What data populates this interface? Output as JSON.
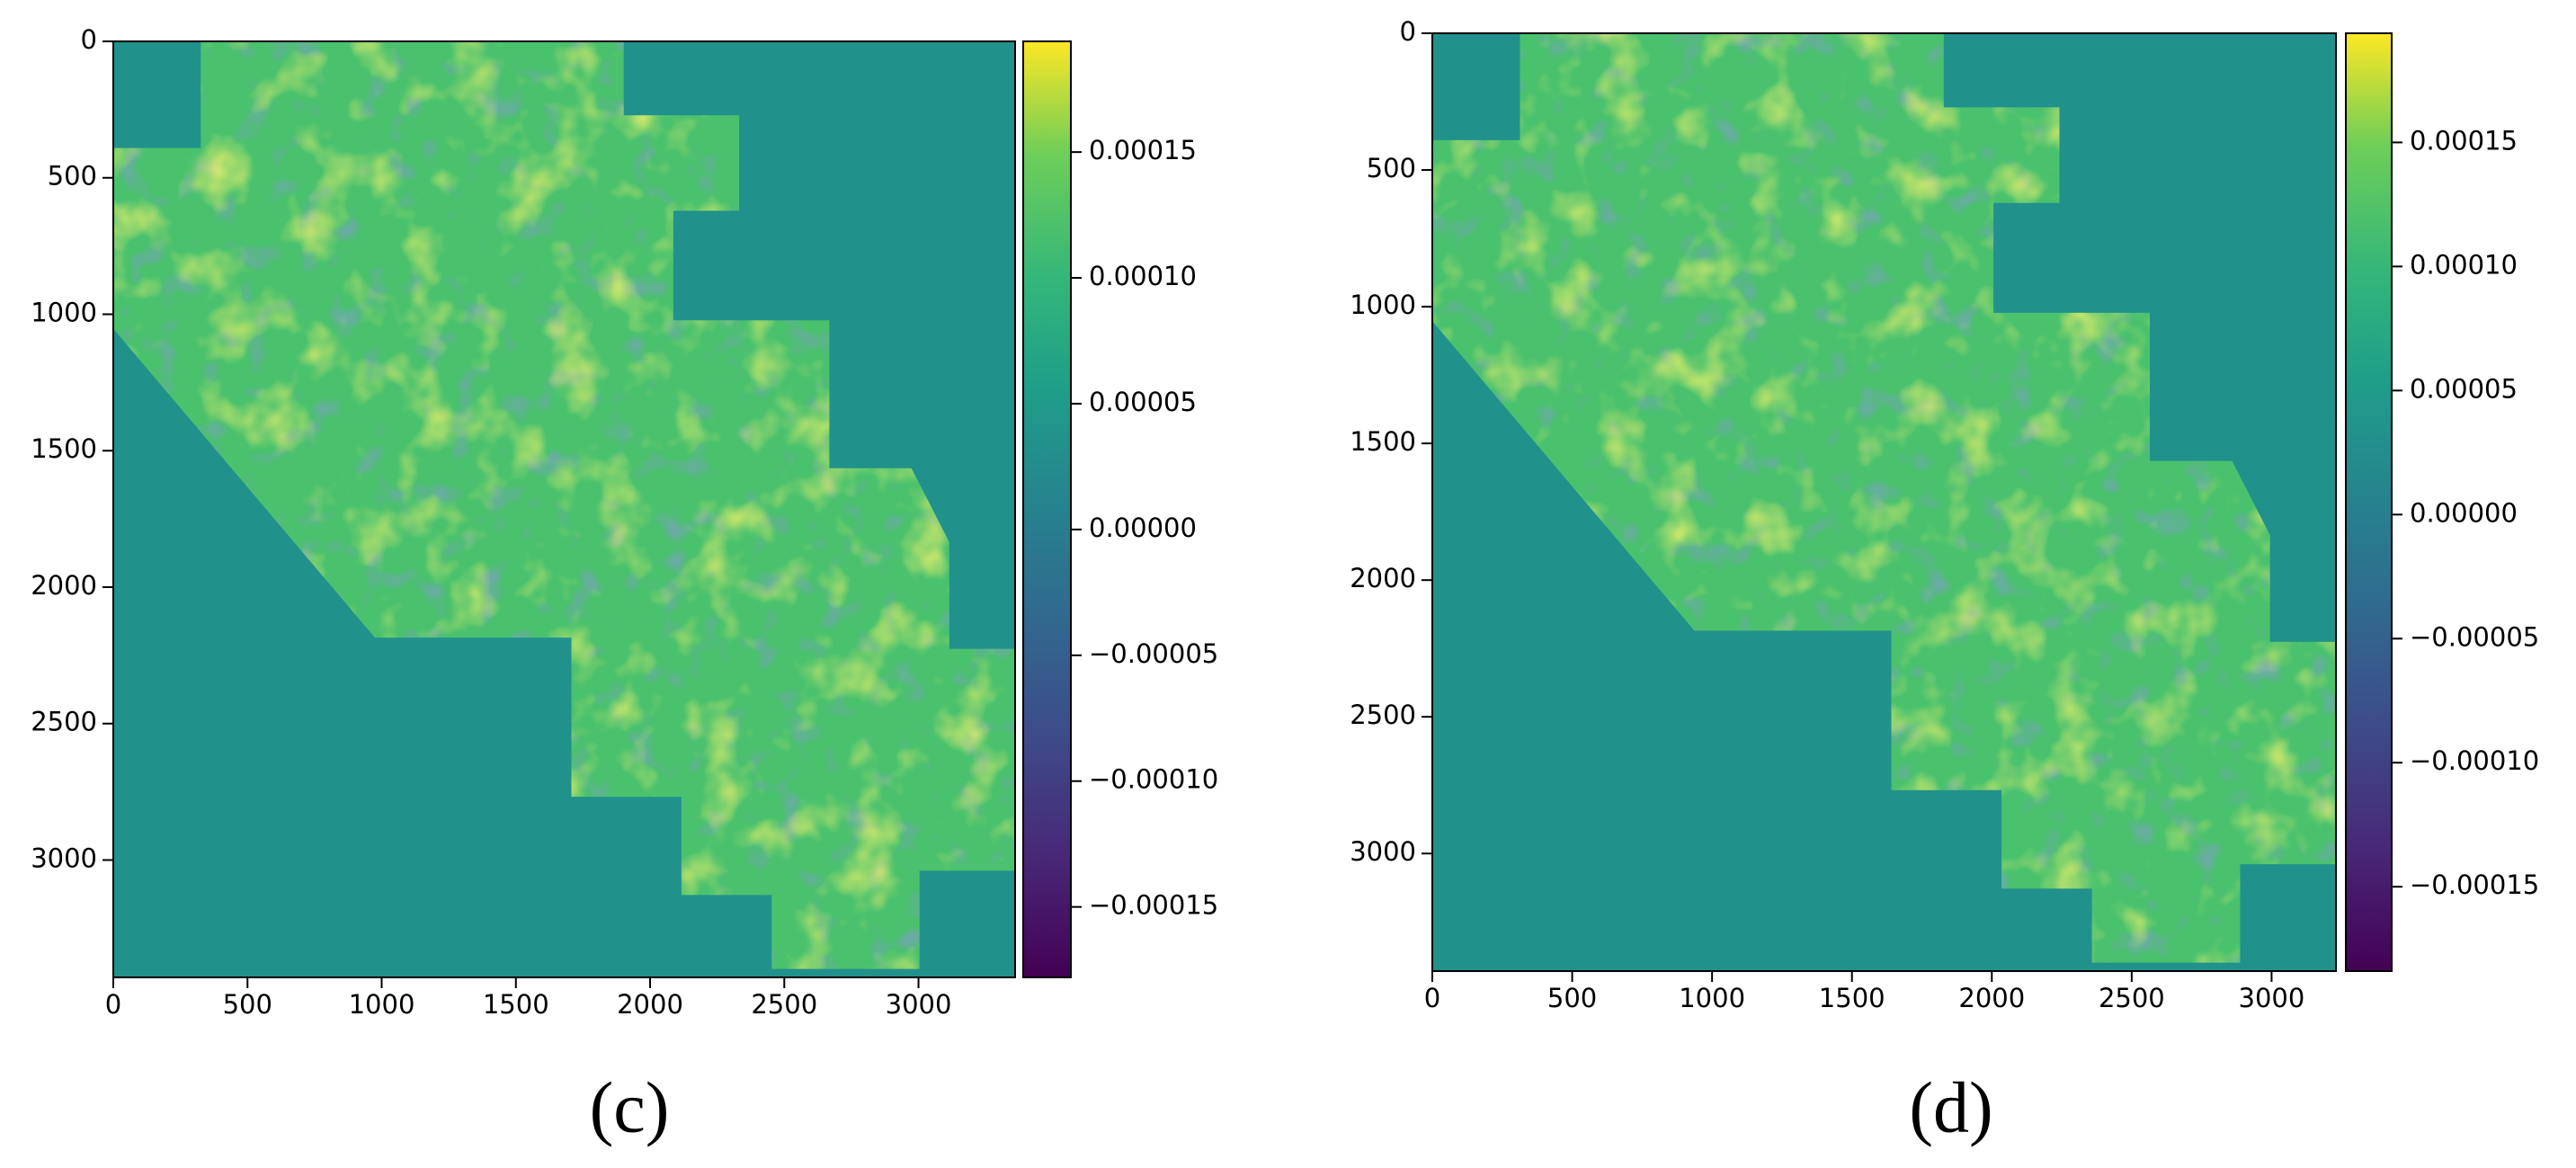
{
  "chart_data": [
    {
      "type": "heatmap",
      "label": "(c)",
      "xlim": [
        0,
        3360
      ],
      "ylim": [
        3430,
        0
      ],
      "xticks": [
        0,
        500,
        1000,
        1500,
        2000,
        2500,
        3000
      ],
      "yticks": [
        0,
        500,
        1000,
        1500,
        2000,
        2500,
        3000
      ],
      "colorbar": {
        "clim": [
          -0.000178,
          0.000194
        ],
        "ticks": [
          0.00015,
          {
            "value": 0.0001,
            "label": "0.00010"
          },
          5e-05,
          {
            "value": 0,
            "label": "0.00000"
          },
          {
            "value": -5e-05,
            "label": "−0.00005"
          },
          {
            "value": -0.0001,
            "label": "−0.00010"
          },
          {
            "value": -0.00015,
            "label": "−0.00015"
          }
        ]
      }
    },
    {
      "type": "heatmap",
      "label": "(d)",
      "xlim": [
        0,
        3230
      ],
      "ylim": [
        3430,
        0
      ],
      "xticks": [
        0,
        500,
        1000,
        1500,
        2000,
        2500,
        3000
      ],
      "yticks": [
        0,
        500,
        1000,
        1500,
        2000,
        2500,
        3000
      ],
      "colorbar": {
        "clim": [
          -0.000184,
          0.000194
        ],
        "ticks": [
          0.00015,
          {
            "value": 0.0001,
            "label": "0.00010"
          },
          5e-05,
          {
            "value": 0,
            "label": "0.00000"
          },
          {
            "value": -5e-05,
            "label": "−0.00005"
          },
          {
            "value": -0.0001,
            "label": "−0.00010"
          },
          {
            "value": -0.00015,
            "label": "−0.00015"
          }
        ]
      }
    }
  ]
}
